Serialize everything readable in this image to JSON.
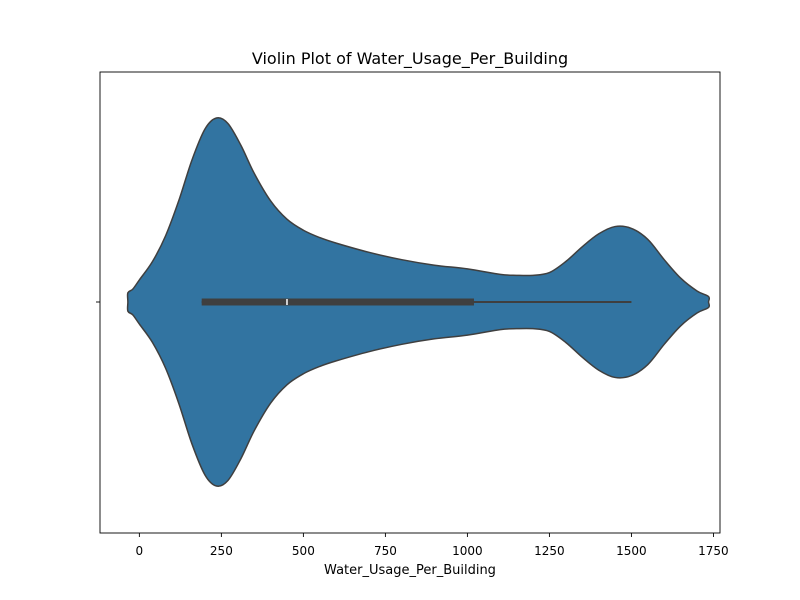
{
  "chart_data": {
    "type": "violin",
    "title": "Violin Plot of Water_Usage_Per_Building",
    "xlabel": "Water_Usage_Per_Building",
    "ylabel": "",
    "xlim": [
      -120,
      1770
    ],
    "xticks": [
      0,
      250,
      500,
      750,
      1000,
      1250,
      1500,
      1750
    ],
    "xtick_labels": [
      "0",
      "250",
      "500",
      "750",
      "1000",
      "1250",
      "1500",
      "1750"
    ],
    "grid": false,
    "violin_color": "#3274a1",
    "edge_color": "#3f3f3f",
    "density_profile": {
      "x": [
        -35,
        -20,
        0,
        40,
        80,
        120,
        160,
        200,
        235,
        270,
        310,
        350,
        400,
        450,
        500,
        550,
        600,
        700,
        800,
        900,
        1000,
        1100,
        1150,
        1200,
        1250,
        1300,
        1350,
        1400,
        1450,
        1500,
        1550,
        1600,
        1650,
        1700,
        1735
      ],
      "relative_density": [
        0.05,
        0.07,
        0.12,
        0.22,
        0.36,
        0.55,
        0.77,
        0.94,
        1.0,
        0.97,
        0.85,
        0.7,
        0.55,
        0.45,
        0.39,
        0.35,
        0.32,
        0.27,
        0.23,
        0.2,
        0.18,
        0.15,
        0.145,
        0.145,
        0.16,
        0.22,
        0.3,
        0.37,
        0.41,
        0.4,
        0.34,
        0.23,
        0.13,
        0.06,
        0.03
      ]
    },
    "box": {
      "q1": 190,
      "median": 450,
      "q3": 1020,
      "whisker_low": 190,
      "whisker_high": 1500
    }
  }
}
